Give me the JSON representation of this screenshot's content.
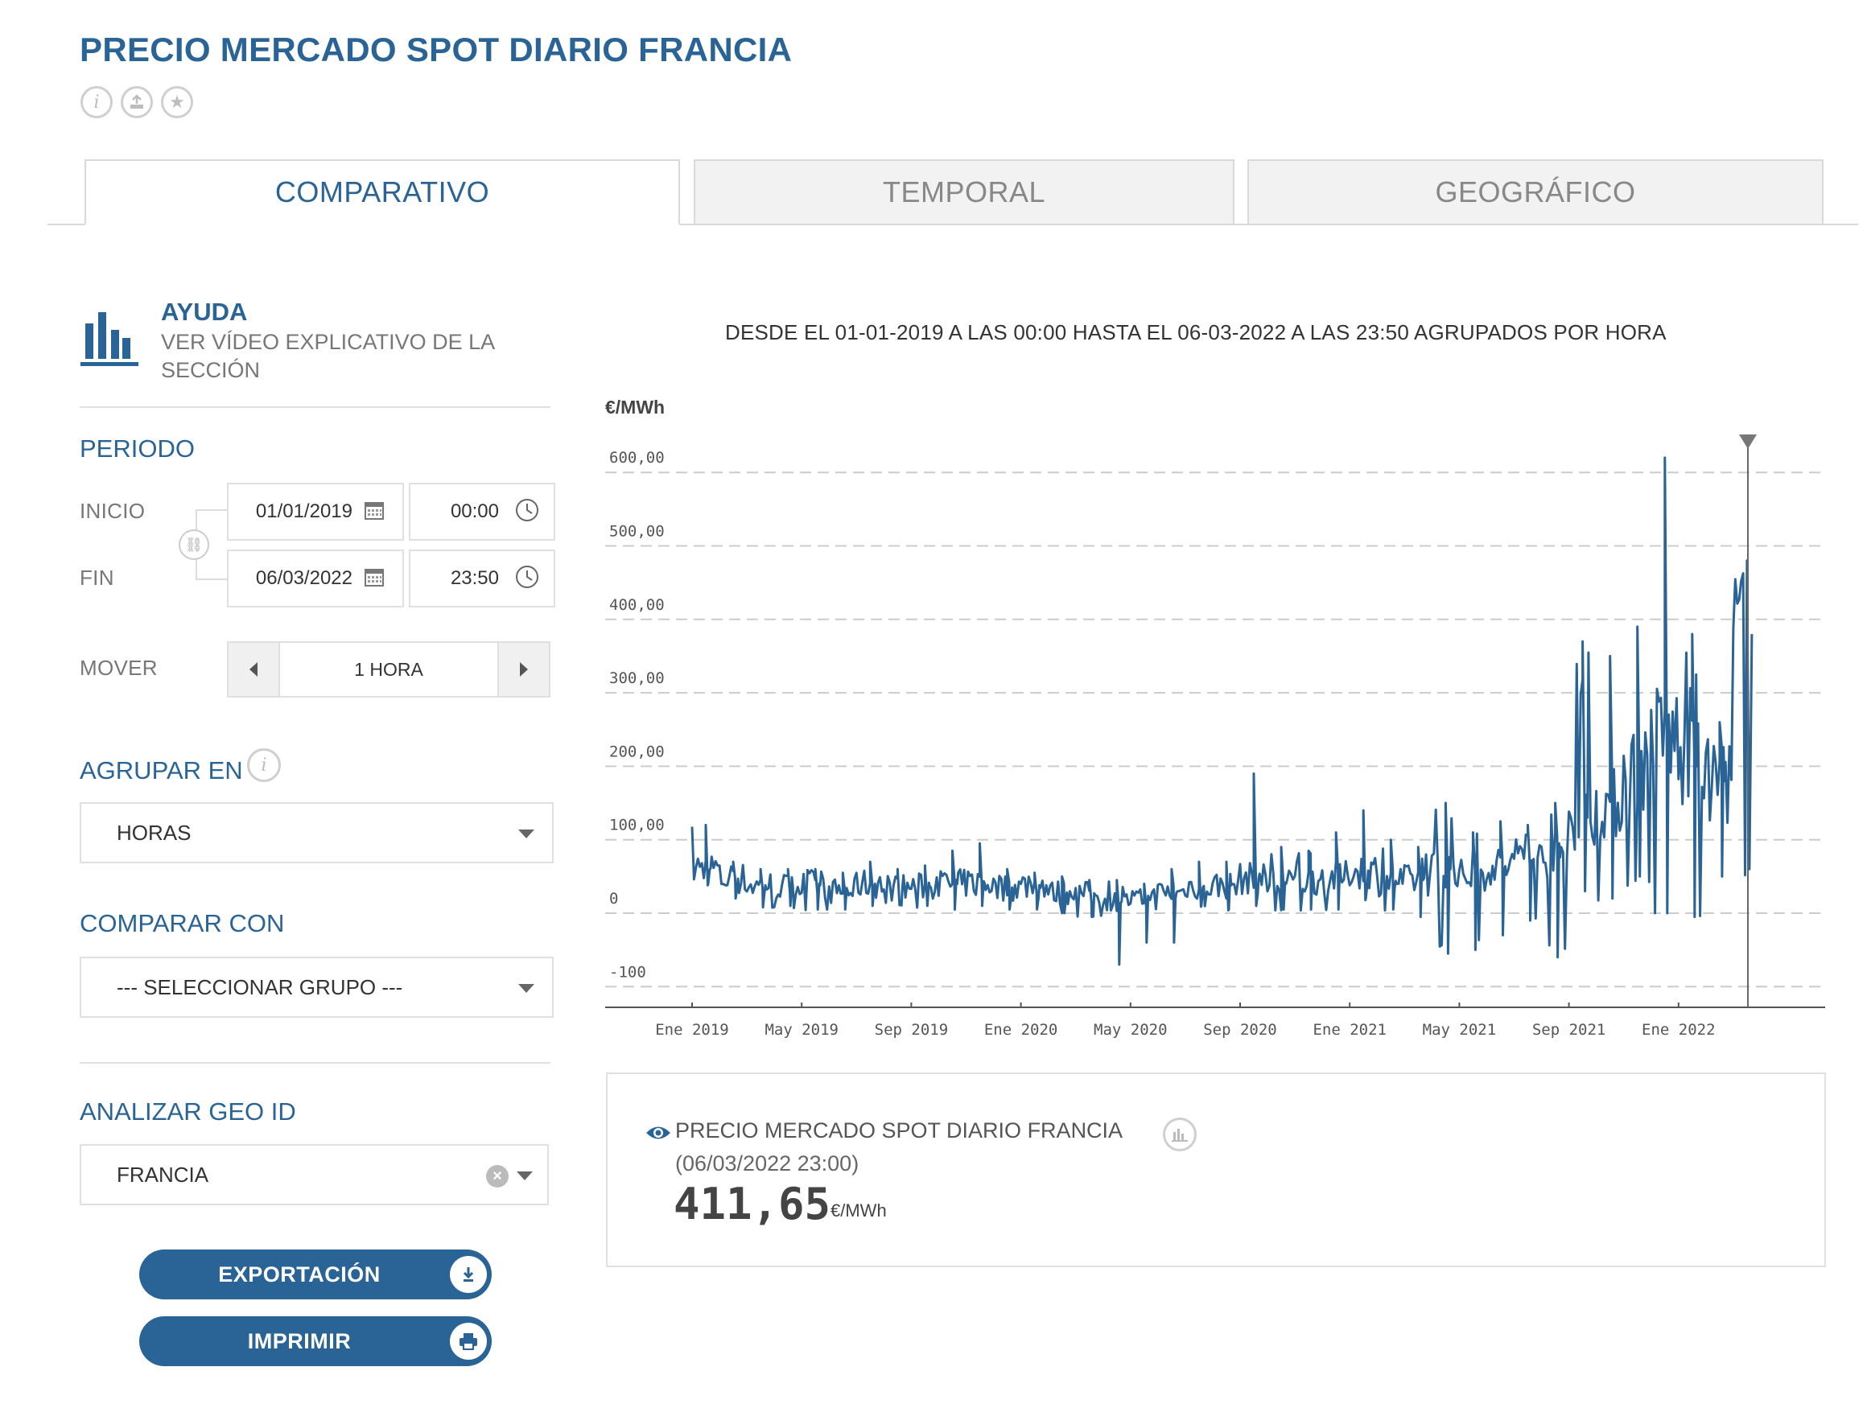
{
  "header": {
    "title": "PRECIO MERCADO SPOT DIARIO FRANCIA",
    "icons": [
      "info-icon",
      "share-icon",
      "star-icon"
    ]
  },
  "tabs": [
    {
      "label": "COMPARATIVO",
      "active": true
    },
    {
      "label": "TEMPORAL",
      "active": false
    },
    {
      "label": "GEOGRÁFICO",
      "active": false
    }
  ],
  "help": {
    "title": "AYUDA",
    "text_line1": "VER VÍDEO EXPLICATIVO DE LA",
    "text_line2": "SECCIÓN"
  },
  "periodo": {
    "title": "PERIODO",
    "inicio_label": "INICIO",
    "fin_label": "FIN",
    "inicio_date": "01/01/2019",
    "inicio_time": "00:00",
    "fin_date": "06/03/2022",
    "fin_time": "23:50",
    "mover_label": "MOVER",
    "mover_value": "1 HORA"
  },
  "agrupar": {
    "title": "AGRUPAR EN",
    "value": "HORAS"
  },
  "comparar": {
    "title": "COMPARAR CON",
    "value": "--- SELECCIONAR GRUPO ---"
  },
  "geo": {
    "title": "ANALIZAR GEO ID",
    "value": "FRANCIA"
  },
  "buttons": {
    "export": "EXPORTACIÓN",
    "print": "IMPRIMIR"
  },
  "chart_header": "DESDE EL 01-01-2019 A LAS 00:00 HASTA EL 06-03-2022 A LAS 23:50 AGRUPADOS POR HORA",
  "chart_data": {
    "type": "line",
    "title": "",
    "ylabel": "€/MWh",
    "xlabel": "",
    "ylim": [
      -100,
      650
    ],
    "yticks": [
      -100,
      0,
      100,
      200,
      300,
      400,
      500,
      600
    ],
    "ytick_labels": [
      "-100",
      "0",
      "100,00",
      "200,00",
      "300,00",
      "400,00",
      "500,00",
      "600,00"
    ],
    "xticks": [
      "Ene 2019",
      "May 2019",
      "Sep 2019",
      "Ene 2020",
      "May 2020",
      "Sep 2020",
      "Ene 2021",
      "May 2021",
      "Sep 2021",
      "Ene 2022"
    ],
    "grid": true,
    "series": [
      {
        "x": [
          "2019-01",
          "2019-02",
          "2019-03",
          "2019-04",
          "2019-05",
          "2019-06",
          "2019-07",
          "2019-08",
          "2019-09",
          "2019-10",
          "2019-11",
          "2019-12",
          "2020-01",
          "2020-02",
          "2020-03",
          "2020-04",
          "2020-05",
          "2020-06",
          "2020-07",
          "2020-08",
          "2020-09",
          "2020-10",
          "2020-11",
          "2020-12",
          "2021-01",
          "2021-02",
          "2021-03",
          "2021-04",
          "2021-05",
          "2021-06",
          "2021-07",
          "2021-08",
          "2021-09",
          "2021-10",
          "2021-11",
          "2021-12",
          "2022-01",
          "2022-02",
          "2022-03"
        ],
        "values": [
          61,
          47,
          38,
          36,
          38,
          30,
          40,
          35,
          36,
          40,
          41,
          35,
          38,
          28,
          27,
          16,
          19,
          28,
          37,
          38,
          47,
          40,
          45,
          49,
          58,
          44,
          45,
          60,
          51,
          64,
          72,
          76,
          130,
          150,
          200,
          240,
          200,
          180,
          380
        ],
        "min": [
          40,
          20,
          8,
          10,
          5,
          5,
          10,
          15,
          10,
          5,
          10,
          5,
          5,
          0,
          -5,
          -70,
          -40,
          -40,
          10,
          5,
          10,
          5,
          5,
          5,
          20,
          5,
          -5,
          -55,
          -50,
          -30,
          -10,
          -60,
          30,
          20,
          50,
          0,
          -5,
          50,
          60
        ],
        "max": [
          120,
          70,
          60,
          60,
          60,
          55,
          70,
          60,
          65,
          85,
          95,
          60,
          55,
          50,
          45,
          45,
          40,
          60,
          70,
          70,
          190,
          90,
          85,
          110,
          140,
          100,
          90,
          150,
          110,
          125,
          120,
          150,
          370,
          350,
          390,
          620,
          380,
          260,
          450
        ]
      }
    ],
    "cursor": {
      "x": "2022-03-06",
      "value": 411.65
    }
  },
  "indicator": {
    "name": "PRECIO MERCADO SPOT DIARIO FRANCIA",
    "datetime": "(06/03/2022 23:00)",
    "value": "411,65",
    "unit": "€/MWh"
  },
  "colors": {
    "brand": "#2a6496",
    "line": "#2a6496"
  }
}
